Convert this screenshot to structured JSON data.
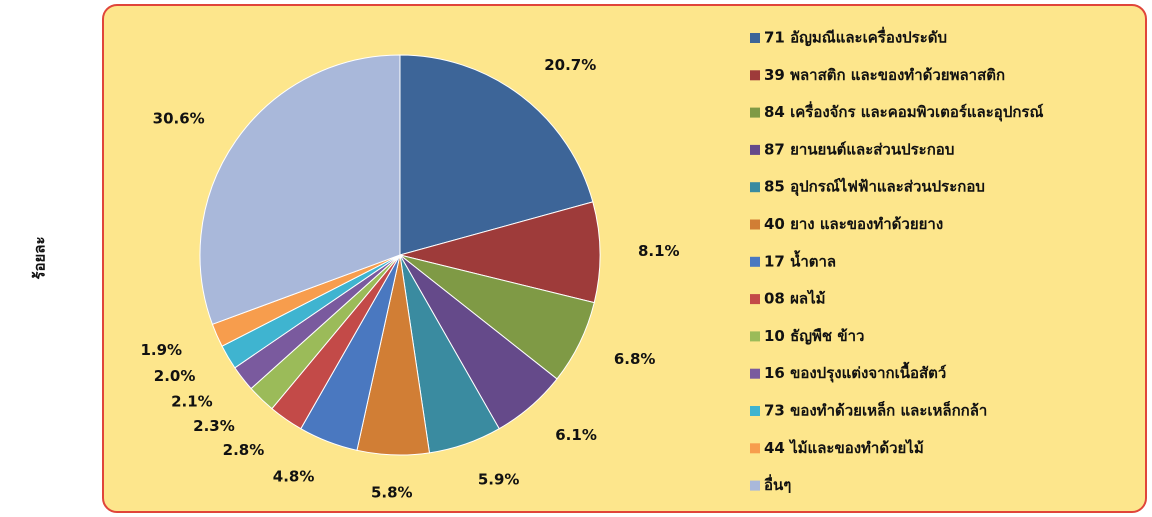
{
  "chart_data": {
    "type": "pie",
    "y_label": "ร้อยละ",
    "categories": [
      "71  อัญมณีและเครื่องประดับ",
      "39  พลาสติก และของทำด้วยพลาสติก",
      "84  เครื่องจักร และคอมพิวเตอร์และอุปกรณ์",
      "87  ยานยนต์และส่วนประกอบ",
      "85  อุปกรณ์ไฟฟ้าและส่วนประกอบ",
      "40  ยาง และของทำด้วยยาง",
      "17  น้ำตาล",
      "08  ผลไม้",
      "10  ธัญพืช ข้าว",
      "16  ของปรุงแต่งจากเนื้อสัตว์",
      "73  ของทำด้วยเหล็ก และเหล็กกล้า",
      "44  ไม้และของทำด้วยไม้",
      "อื่นๆ"
    ],
    "values": [
      20.7,
      8.1,
      6.8,
      6.1,
      5.9,
      5.8,
      4.8,
      2.8,
      2.3,
      2.1,
      2.0,
      1.9,
      30.6
    ],
    "value_labels": [
      "20.7%",
      "8.1%",
      "6.8%",
      "6.1%",
      "5.9%",
      "5.8%",
      "4.8%",
      "2.8%",
      "2.3%",
      "2.1%",
      "2.0%",
      "1.9%",
      "30.6%"
    ],
    "colors": [
      "#3d6598",
      "#9e3b3a",
      "#7f9a45",
      "#654a8a",
      "#3a8ba0",
      "#d17e35",
      "#4a78c0",
      "#c34a48",
      "#9bbb59",
      "#7a5a9e",
      "#3fb4d0",
      "#f79d4d",
      "#a9b8da"
    ],
    "legend": "right"
  }
}
